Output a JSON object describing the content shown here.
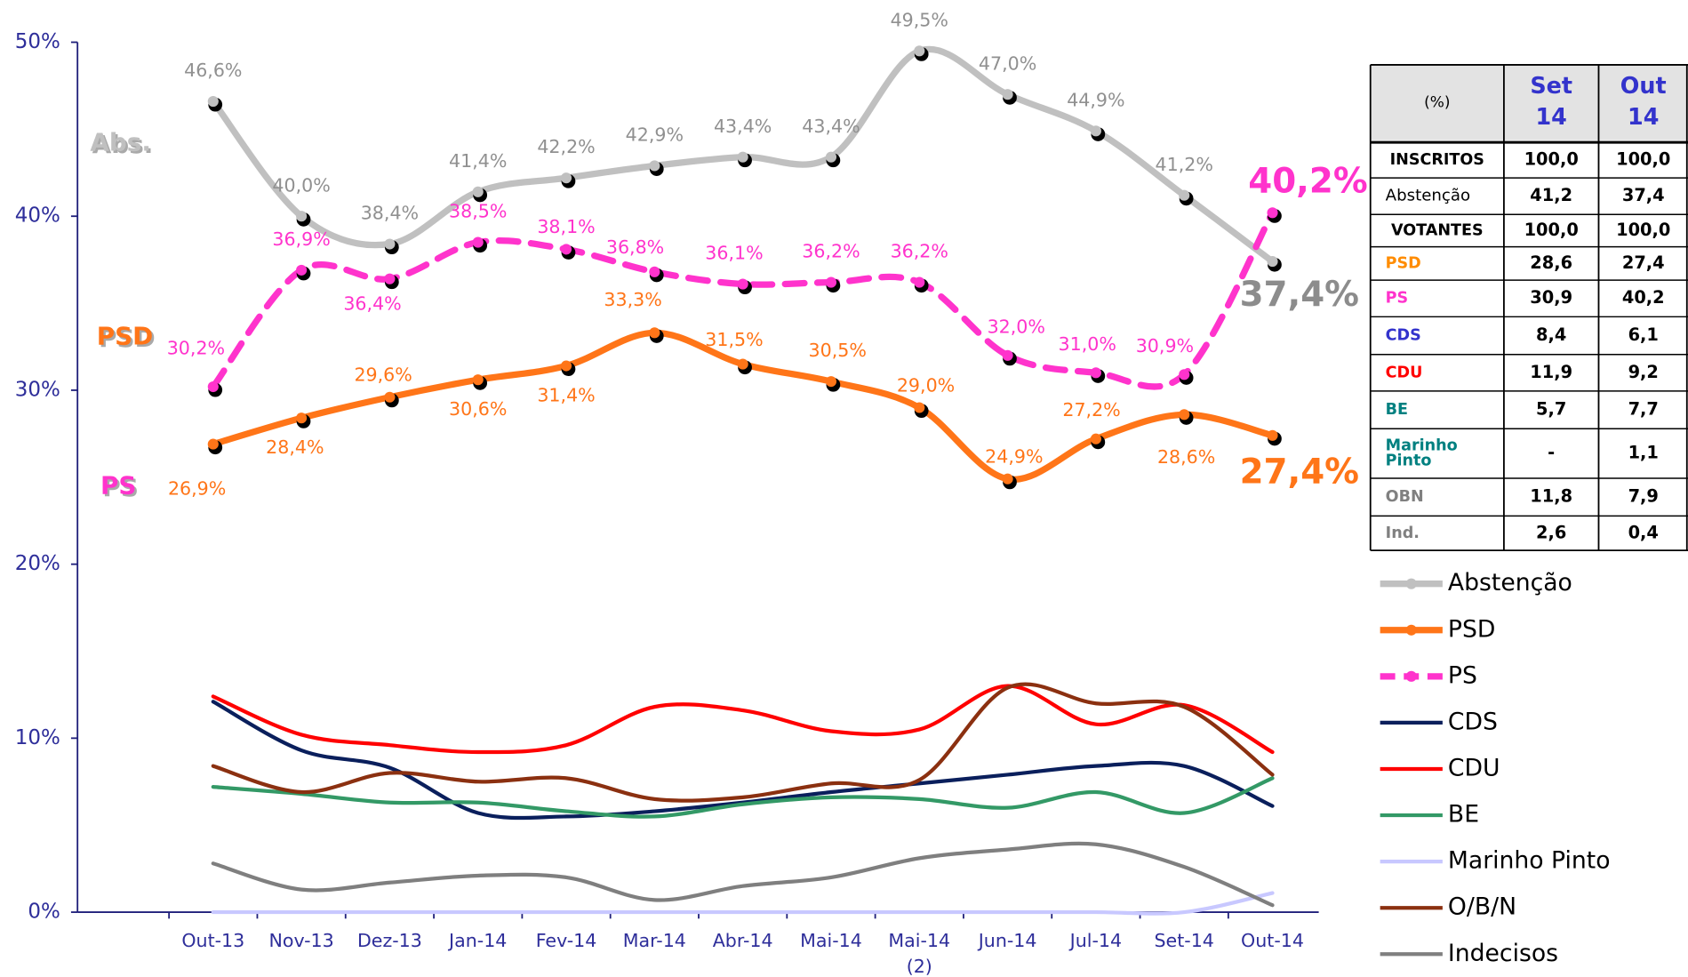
{
  "chart_data": {
    "type": "line",
    "categories": [
      "Out-13",
      "Nov-13",
      "Dez-13",
      "Jan-14",
      "Fev-14",
      "Mar-14",
      "Abr-14",
      "Mai-14",
      "Mai-14\n(2)",
      "Jun-14",
      "Jul-14",
      "Set-14",
      "Out-14"
    ],
    "ylim": [
      0,
      50
    ],
    "yticks": [
      {
        "value": 0,
        "label": "0%"
      },
      {
        "value": 10,
        "label": "10%"
      },
      {
        "value": 20,
        "label": "20%"
      },
      {
        "value": 30,
        "label": "30%"
      },
      {
        "value": 40,
        "label": "40%"
      },
      {
        "value": 50,
        "label": "50%"
      }
    ],
    "series": [
      {
        "name": "Abstenção",
        "tag": "Abs.",
        "color": "#c0c0c0",
        "width": 6,
        "markers": true,
        "values": [
          46.6,
          40.0,
          38.4,
          41.4,
          42.2,
          42.9,
          43.4,
          43.4,
          49.5,
          47.0,
          44.9,
          41.2,
          37.4
        ],
        "value_labels": [
          "46,6%",
          "40,0%",
          "38,4%",
          "41,4%",
          "42,2%",
          "42,9%",
          "43,4%",
          "43,4%",
          "49,5%",
          "47,0%",
          "44,9%",
          "41,2%",
          "37,4%"
        ]
      },
      {
        "name": "PSD",
        "tag": "PSD",
        "color": "#ff7518",
        "width": 6,
        "markers": true,
        "values": [
          26.9,
          28.4,
          29.6,
          30.6,
          31.4,
          33.3,
          31.5,
          30.5,
          29.0,
          24.9,
          27.2,
          28.6,
          27.4
        ],
        "value_labels": [
          "26,9%",
          "28,4%",
          "29,6%",
          "30,6%",
          "31,4%",
          "33,3%",
          "31,5%",
          "30,5%",
          "29,0%",
          "24,9%",
          "27,2%",
          "28,6%",
          "27,4%"
        ]
      },
      {
        "name": "PS",
        "tag": "PS",
        "color": "#ff33cc",
        "width": 6,
        "markers": true,
        "dashed": true,
        "values": [
          30.2,
          36.9,
          36.4,
          38.5,
          38.1,
          36.8,
          36.1,
          36.2,
          36.2,
          32.0,
          31.0,
          30.9,
          40.2
        ],
        "value_labels": [
          "30,2%",
          "36,9%",
          "36,4%",
          "38,5%",
          "38,1%",
          "36,8%",
          "36,1%",
          "36,2%",
          "36,2%",
          "32,0%",
          "31,0%",
          "30,9%",
          "40,2%"
        ]
      },
      {
        "name": "CDS",
        "color": "#0a1f5c",
        "width": 3.5,
        "values": [
          12.1,
          9.3,
          8.3,
          5.7,
          5.5,
          5.8,
          6.3,
          6.9,
          7.4,
          7.9,
          8.4,
          8.4,
          6.1
        ]
      },
      {
        "name": "CDU",
        "color": "#ff0000",
        "width": 3.5,
        "values": [
          12.4,
          10.2,
          9.6,
          9.2,
          9.6,
          11.8,
          11.6,
          10.4,
          10.5,
          13.0,
          10.8,
          11.9,
          9.2
        ]
      },
      {
        "name": "BE",
        "color": "#339966",
        "width": 3.5,
        "values": [
          7.2,
          6.8,
          6.3,
          6.3,
          5.8,
          5.5,
          6.2,
          6.6,
          6.5,
          6.0,
          6.9,
          5.7,
          7.7
        ]
      },
      {
        "name": "Marinho Pinto",
        "color": "#c8c8ff",
        "width": 3.5,
        "values": [
          0,
          0,
          0,
          0,
          0,
          0,
          0,
          0,
          0,
          0,
          0,
          0,
          1.1
        ]
      },
      {
        "name": "O/B/N",
        "color": "#8b3010",
        "width": 3.5,
        "values": [
          8.4,
          6.9,
          8.0,
          7.5,
          7.7,
          6.5,
          6.6,
          7.4,
          7.6,
          12.9,
          12.0,
          11.8,
          7.9
        ]
      },
      {
        "name": "Indecisos",
        "color": "#7f7f7f",
        "width": 3.5,
        "values": [
          2.8,
          1.3,
          1.7,
          2.1,
          2.0,
          0.7,
          1.5,
          2.0,
          3.1,
          3.6,
          3.9,
          2.6,
          0.4
        ]
      }
    ]
  },
  "table": {
    "columns": [
      "(%)",
      "Set\n14",
      "Out\n14"
    ],
    "rows": [
      [
        "INSCRITOS",
        "100,0",
        "100,0"
      ],
      [
        "Abstenção",
        "41,2",
        "37,4"
      ],
      [
        "VOTANTES",
        "100,0",
        "100,0"
      ],
      [
        "PSD",
        "28,6",
        "27,4"
      ],
      [
        "PS",
        "30,9",
        "40,2"
      ],
      [
        "CDS",
        "8,4",
        "6,1"
      ],
      [
        "CDU",
        "11,9",
        "9,2"
      ],
      [
        "BE",
        "5,7",
        "7,7"
      ],
      [
        "Marinho\nPinto",
        "-",
        "1,1"
      ],
      [
        "OBN",
        "11,8",
        "7,9"
      ],
      [
        "Ind.",
        "2,6",
        "0,4"
      ]
    ],
    "row_colors": [
      "#000000",
      "#000000",
      "#000000",
      "#ff8c00",
      "#ff33cc",
      "#3333cc",
      "#ff0000",
      "#008080",
      "#008080",
      "#808080",
      "#808080"
    ]
  }
}
